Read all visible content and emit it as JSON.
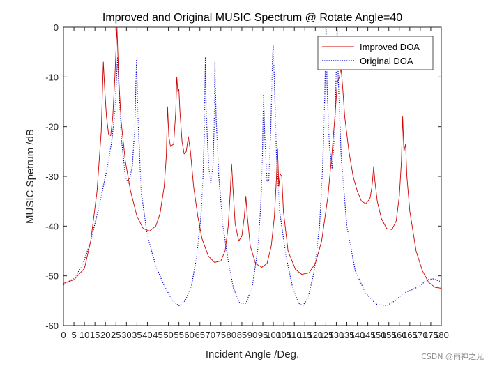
{
  "chart_data": {
    "type": "line",
    "title": "Improved and Original MUSIC Spectrum @ Rotate Angle=40",
    "xlabel": "Incident Angle /Deg.",
    "ylabel": "MUSIC Spetrum /dB",
    "xlim": [
      0,
      180
    ],
    "ylim": [
      -60,
      0
    ],
    "xticks": [
      "0",
      "5",
      "10",
      "15",
      "20",
      "25",
      "30",
      "35",
      "40",
      "45",
      "50",
      "55",
      "60",
      "65",
      "70",
      "75",
      "80",
      "85",
      "90",
      "95",
      "100",
      "105",
      "110",
      "115",
      "120",
      "125",
      "130",
      "135",
      "140",
      "145",
      "150",
      "155",
      "160",
      "165",
      "170",
      "175",
      "180"
    ],
    "yticks": [
      "0",
      "-10",
      "-20",
      "-30",
      "-40",
      "-50",
      "-60"
    ],
    "legend": {
      "position": "top-right",
      "entries": [
        "Improved DOA",
        "Original DOA"
      ]
    },
    "series": [
      {
        "name": "Improved DOA",
        "color": "#cc0000",
        "style": "solid",
        "points": [
          [
            0,
            -51.5
          ],
          [
            5,
            -50.8
          ],
          [
            10,
            -48.5
          ],
          [
            13,
            -43
          ],
          [
            16,
            -33
          ],
          [
            18,
            -21
          ],
          [
            19,
            -7
          ],
          [
            19.6,
            -12
          ],
          [
            20.5,
            -18
          ],
          [
            21.5,
            -21.5
          ],
          [
            22.5,
            -21.8
          ],
          [
            23.5,
            -18
          ],
          [
            24.5,
            -10
          ],
          [
            25.5,
            0
          ],
          [
            26.3,
            -10
          ],
          [
            27.5,
            -19
          ],
          [
            29.5,
            -27
          ],
          [
            32,
            -33
          ],
          [
            35,
            -38
          ],
          [
            38,
            -40.5
          ],
          [
            41,
            -41
          ],
          [
            44,
            -40
          ],
          [
            46,
            -37.5
          ],
          [
            48,
            -32
          ],
          [
            49,
            -26
          ],
          [
            49.6,
            -16
          ],
          [
            50.2,
            -22
          ],
          [
            51,
            -24
          ],
          [
            52.5,
            -23.5
          ],
          [
            53.5,
            -17
          ],
          [
            54,
            -10
          ],
          [
            54.5,
            -13
          ],
          [
            55,
            -12.5
          ],
          [
            55.5,
            -17
          ],
          [
            56.5,
            -23
          ],
          [
            57.5,
            -25.5
          ],
          [
            58.5,
            -25
          ],
          [
            59.5,
            -22
          ],
          [
            60.5,
            -25
          ],
          [
            62,
            -32
          ],
          [
            64,
            -38
          ],
          [
            66,
            -42.5
          ],
          [
            69,
            -46
          ],
          [
            72,
            -47.3
          ],
          [
            75,
            -47
          ],
          [
            77,
            -45
          ],
          [
            78.5,
            -40
          ],
          [
            79.5,
            -33
          ],
          [
            80.1,
            -27.5
          ],
          [
            80.7,
            -32
          ],
          [
            81.8,
            -39.5
          ],
          [
            83.5,
            -43
          ],
          [
            85,
            -42
          ],
          [
            86.2,
            -38
          ],
          [
            86.9,
            -34
          ],
          [
            87.6,
            -38
          ],
          [
            89,
            -44
          ],
          [
            91.5,
            -47.5
          ],
          [
            94.5,
            -48.3
          ],
          [
            97,
            -47.5
          ],
          [
            99,
            -44
          ],
          [
            100.5,
            -38
          ],
          [
            101.5,
            -30
          ],
          [
            102,
            -24.5
          ],
          [
            102.6,
            -32
          ],
          [
            103.2,
            -29.5
          ],
          [
            104,
            -30
          ],
          [
            104.8,
            -37
          ],
          [
            107,
            -45
          ],
          [
            110.5,
            -48.7
          ],
          [
            113.5,
            -49.7
          ],
          [
            117,
            -49.4
          ],
          [
            120,
            -47.5
          ],
          [
            123,
            -43
          ],
          [
            126,
            -34
          ],
          [
            128,
            -25
          ],
          [
            129.5,
            -17
          ],
          [
            130.5,
            -11
          ],
          [
            131.5,
            -10
          ],
          [
            132.2,
            -8
          ],
          [
            133,
            -12
          ],
          [
            134,
            -18
          ],
          [
            136,
            -25
          ],
          [
            138,
            -30
          ],
          [
            140,
            -33
          ],
          [
            142,
            -35
          ],
          [
            144,
            -35.5
          ],
          [
            146,
            -34.5
          ],
          [
            147,
            -32
          ],
          [
            147.8,
            -28
          ],
          [
            148.4,
            -31
          ],
          [
            149.5,
            -35
          ],
          [
            151.5,
            -38.5
          ],
          [
            154,
            -40.5
          ],
          [
            156.5,
            -40.7
          ],
          [
            158.5,
            -39
          ],
          [
            160,
            -34
          ],
          [
            161,
            -27
          ],
          [
            161.6,
            -18
          ],
          [
            162.2,
            -25
          ],
          [
            163,
            -23.5
          ],
          [
            163.6,
            -30
          ],
          [
            165,
            -37
          ],
          [
            168,
            -45
          ],
          [
            171,
            -49
          ],
          [
            174,
            -51.3
          ],
          [
            177,
            -52.3
          ],
          [
            180,
            -52.5
          ]
        ]
      },
      {
        "name": "Original DOA",
        "color": "#0000cc",
        "style": "dotted",
        "points": [
          [
            0,
            -51.8
          ],
          [
            5,
            -50.5
          ],
          [
            9,
            -48
          ],
          [
            13,
            -43
          ],
          [
            17,
            -36
          ],
          [
            20.5,
            -29
          ],
          [
            23,
            -23
          ],
          [
            24.5,
            -17
          ],
          [
            25.3,
            -10
          ],
          [
            25.8,
            -6
          ],
          [
            26.3,
            -11
          ],
          [
            27.5,
            -22
          ],
          [
            29.5,
            -30
          ],
          [
            31,
            -31.5
          ],
          [
            32.8,
            -28
          ],
          [
            34,
            -20
          ],
          [
            34.8,
            -6.5
          ],
          [
            35.5,
            -18
          ],
          [
            37,
            -33
          ],
          [
            40,
            -42
          ],
          [
            44,
            -48
          ],
          [
            48,
            -52
          ],
          [
            52,
            -55
          ],
          [
            55,
            -56
          ],
          [
            58,
            -55
          ],
          [
            61,
            -52
          ],
          [
            63.5,
            -46
          ],
          [
            65.5,
            -38
          ],
          [
            66.5,
            -30
          ],
          [
            67.2,
            -20
          ],
          [
            67.6,
            -6
          ],
          [
            68.1,
            -18
          ],
          [
            69.2,
            -28
          ],
          [
            70.2,
            -31.5
          ],
          [
            71.2,
            -28
          ],
          [
            71.8,
            -20
          ],
          [
            72.2,
            -7
          ],
          [
            72.7,
            -18
          ],
          [
            74,
            -30
          ],
          [
            76,
            -40
          ],
          [
            78.5,
            -47
          ],
          [
            81,
            -52.5
          ],
          [
            84,
            -55.5
          ],
          [
            87,
            -55.5
          ],
          [
            90,
            -52
          ],
          [
            92.5,
            -45
          ],
          [
            94,
            -36
          ],
          [
            94.8,
            -26
          ],
          [
            95.3,
            -13.5
          ],
          [
            95.9,
            -22
          ],
          [
            97,
            -31
          ],
          [
            97.8,
            -31
          ],
          [
            98.8,
            -20
          ],
          [
            99.5,
            -8
          ],
          [
            99.9,
            -3.5
          ],
          [
            100.5,
            -11
          ],
          [
            101.5,
            -26
          ],
          [
            103,
            -37
          ],
          [
            106,
            -46
          ],
          [
            109,
            -52
          ],
          [
            112,
            -55.5
          ],
          [
            114,
            -56
          ],
          [
            116.5,
            -54.5
          ],
          [
            119.5,
            -49
          ],
          [
            122,
            -40
          ],
          [
            123.5,
            -28
          ],
          [
            124.5,
            -14
          ],
          [
            125.1,
            0
          ],
          [
            125.6,
            -12
          ],
          [
            126.7,
            -24
          ],
          [
            128,
            -28.5
          ],
          [
            129.3,
            -20
          ],
          [
            130,
            -8
          ],
          [
            130.4,
            0
          ],
          [
            130.9,
            -10
          ],
          [
            132.3,
            -26
          ],
          [
            135,
            -40
          ],
          [
            139,
            -49
          ],
          [
            144,
            -53.5
          ],
          [
            149,
            -55.7
          ],
          [
            154,
            -56
          ],
          [
            158,
            -55
          ],
          [
            162,
            -53.5
          ],
          [
            166,
            -52.8
          ],
          [
            170,
            -52
          ],
          [
            173,
            -50.8
          ],
          [
            176,
            -50.6
          ],
          [
            180,
            -51.2
          ]
        ]
      }
    ]
  },
  "watermark": "CSDN @雨神之光"
}
